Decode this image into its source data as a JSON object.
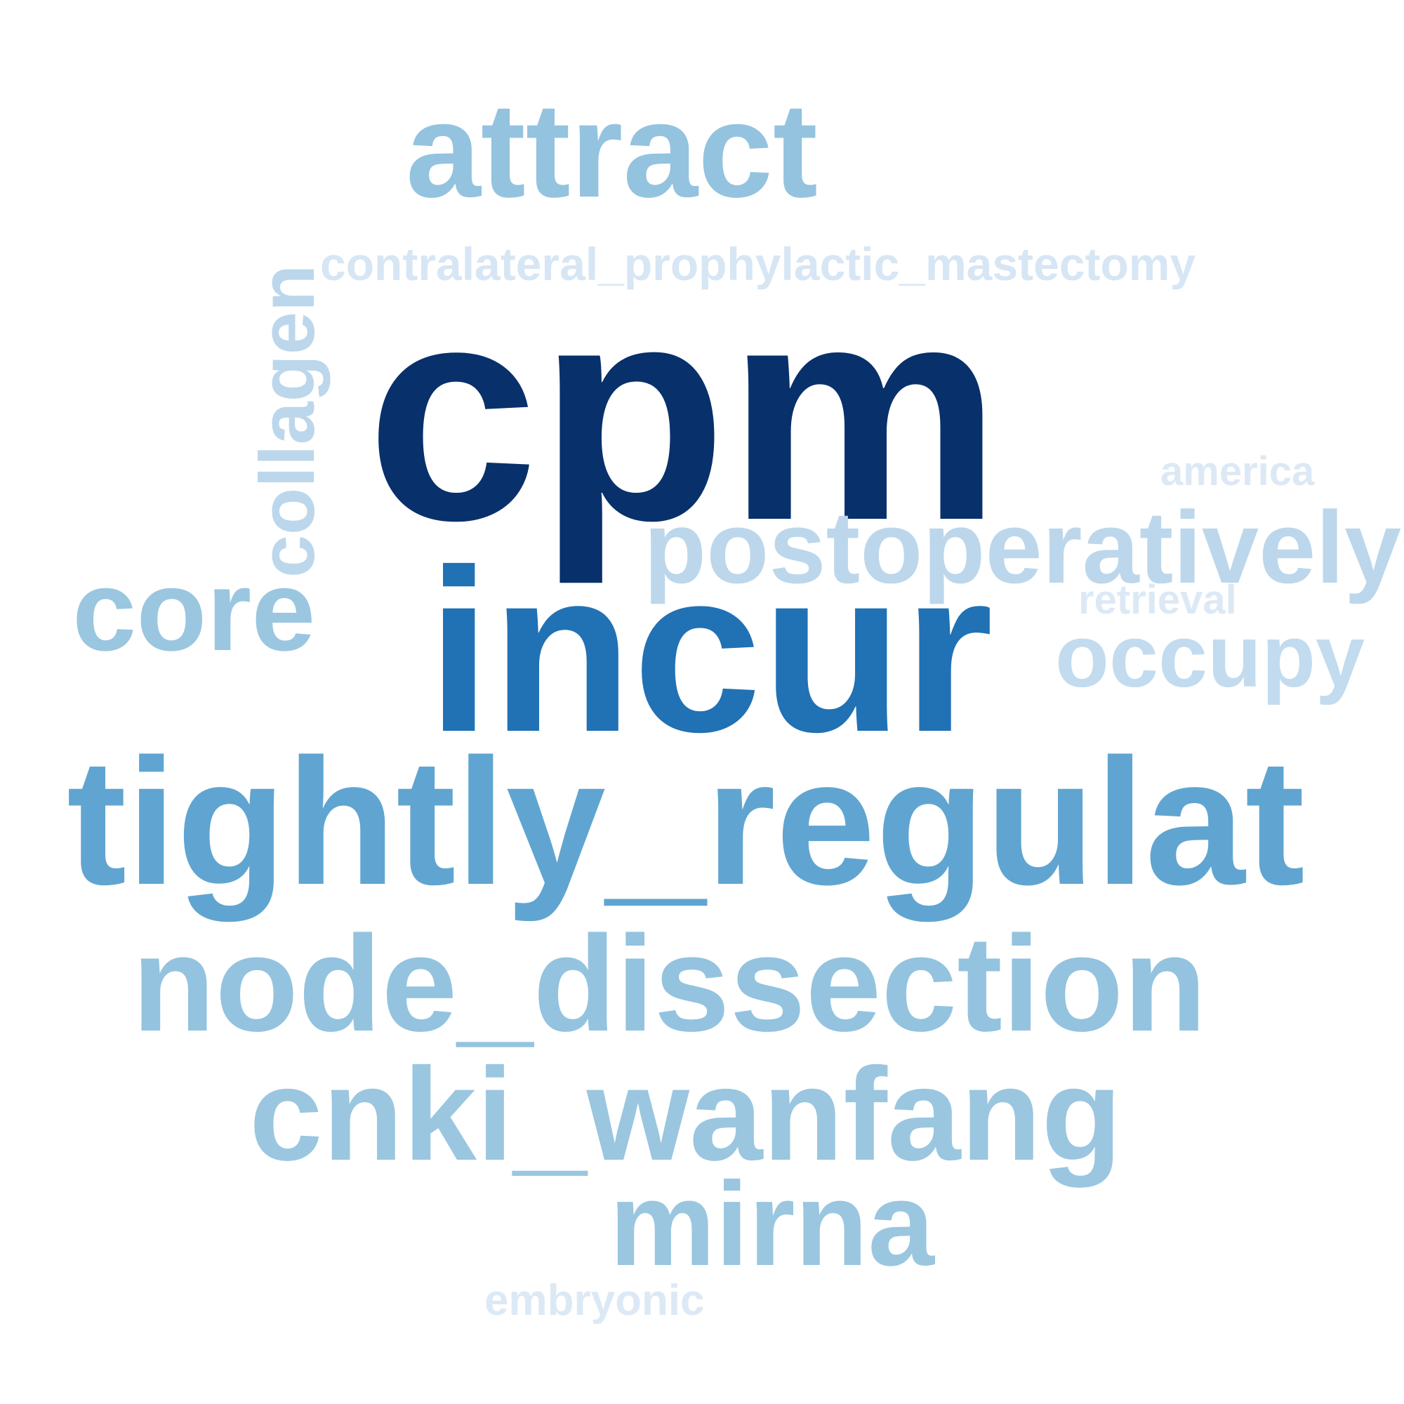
{
  "words": [
    {
      "id": "cpm",
      "text": "cpm",
      "color": "#08306b"
    },
    {
      "id": "incur",
      "text": "incur",
      "color": "#2171b5"
    },
    {
      "id": "tightly_regulat",
      "text": "tightly_regulat",
      "color": "#60a5d1"
    },
    {
      "id": "attract",
      "text": "attract",
      "color": "#93c3df"
    },
    {
      "id": "node_dissection",
      "text": "node_dissection",
      "color": "#93c3df"
    },
    {
      "id": "cnki_wanfang",
      "text": "cnki_wanfang",
      "color": "#9ac6e0"
    },
    {
      "id": "mirna",
      "text": "mirna",
      "color": "#9ac6e0"
    },
    {
      "id": "core",
      "text": "core",
      "color": "#9ac6e0"
    },
    {
      "id": "collagen",
      "text": "collagen",
      "color": "#bcd7eb"
    },
    {
      "id": "postoperatively",
      "text": "postoperatively",
      "color": "#bcd7eb"
    },
    {
      "id": "occupy",
      "text": "occupy",
      "color": "#c2dbee"
    },
    {
      "id": "contralateral_prophylactic_mastectomy",
      "text": "contralateral_prophylactic_mastectomy",
      "color": "#d7e6f4"
    },
    {
      "id": "america",
      "text": "america",
      "color": "#dce9f5"
    },
    {
      "id": "retrieval",
      "text": "retrieval",
      "color": "#dce9f5"
    },
    {
      "id": "embryonic",
      "text": "embryonic",
      "color": "#dce9f5"
    }
  ]
}
